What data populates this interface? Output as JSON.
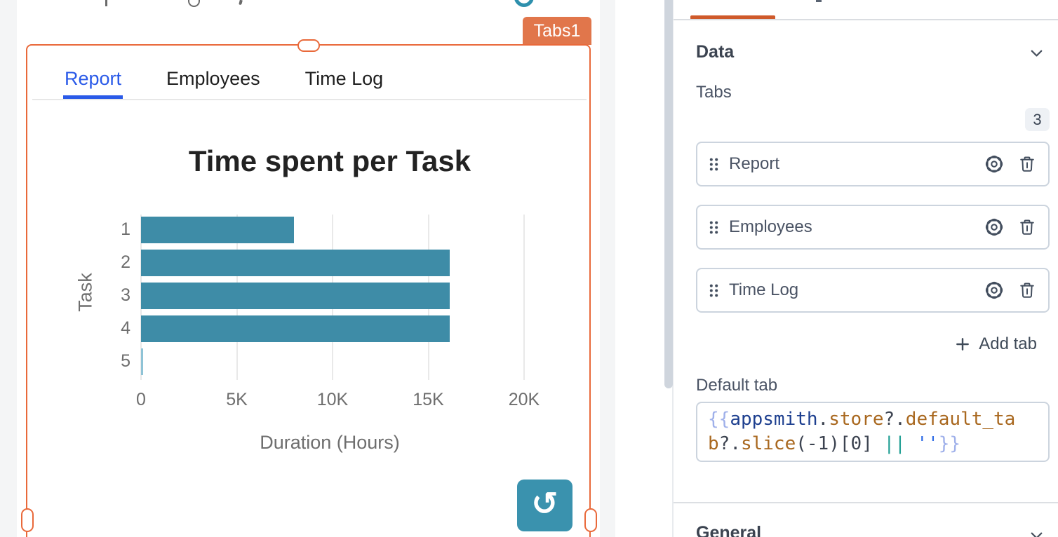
{
  "canvas": {
    "widget_name_badge": "Tabs1",
    "tabs": [
      {
        "label": "Report",
        "active": true
      },
      {
        "label": "Employees",
        "active": false
      },
      {
        "label": "Time Log",
        "active": false
      }
    ]
  },
  "chart_data": {
    "type": "bar",
    "orientation": "horizontal",
    "title": "Time spent per Task",
    "categories": [
      "1",
      "2",
      "3",
      "4",
      "5"
    ],
    "values": [
      8000,
      16100,
      16100,
      16100,
      50
    ],
    "xlabel": "Duration (Hours)",
    "ylabel": "Task",
    "xlim": [
      0,
      20000
    ],
    "xtick_values": [
      0,
      5000,
      10000,
      15000,
      20000
    ],
    "xtick_labels": [
      "0",
      "5K",
      "10K",
      "15K",
      "20K"
    ],
    "grid": "vertical",
    "bar_color": "#3e8ca7",
    "tiny_bar_color": "#8fc3d6",
    "legend": "none"
  },
  "property_pane": {
    "data_section_label": "Data",
    "general_section_label": "General",
    "tabs_field_label": "Tabs",
    "tab_count": "3",
    "tab_items": [
      {
        "label": "Report"
      },
      {
        "label": "Employees"
      },
      {
        "label": "Time Log"
      }
    ],
    "add_tab_label": "Add tab",
    "default_tab_label": "Default tab",
    "default_tab_code": "{{appsmith.store?.default_tab?.slice(-1)[0] || ''}}",
    "default_tab_tokens": [
      {
        "t": "{{",
        "c": "brace"
      },
      {
        "t": "appsmith",
        "c": "entity"
      },
      {
        "t": ".",
        "c": "punct"
      },
      {
        "t": "store",
        "c": "prop"
      },
      {
        "t": "?.",
        "c": "punct"
      },
      {
        "t": "default_tab",
        "c": "prop"
      },
      {
        "t": "?",
        "c": "punct"
      },
      {
        "t": ".",
        "c": "punct"
      },
      {
        "t": "slice",
        "c": "prop"
      },
      {
        "t": "(-1)[0]",
        "c": "punct"
      },
      {
        "t": " ",
        "c": "punct"
      },
      {
        "t": "||",
        "c": "op"
      },
      {
        "t": " ",
        "c": "punct"
      },
      {
        "t": "''",
        "c": "string"
      },
      {
        "t": "}}",
        "c": "brace"
      }
    ]
  },
  "icons": {
    "refresh_glyph": "↺",
    "refresh": "refresh-icon",
    "chevron_down": "chevron-down-icon",
    "gear": "gear-icon",
    "trash": "trash-icon",
    "drag_handle": "drag-handle-icon",
    "plus": "plus-icon"
  },
  "colors": {
    "selection_orange": "#e9693a",
    "badge_orange": "#e1764b",
    "pane_tab_underline_orange": "#cf5a2b",
    "active_tab_blue": "#2a5ae8",
    "bar_teal": "#3e8ca7",
    "refresh_button_teal": "#3a92ae",
    "scrollbar_thumb": "#cfd5dd"
  }
}
